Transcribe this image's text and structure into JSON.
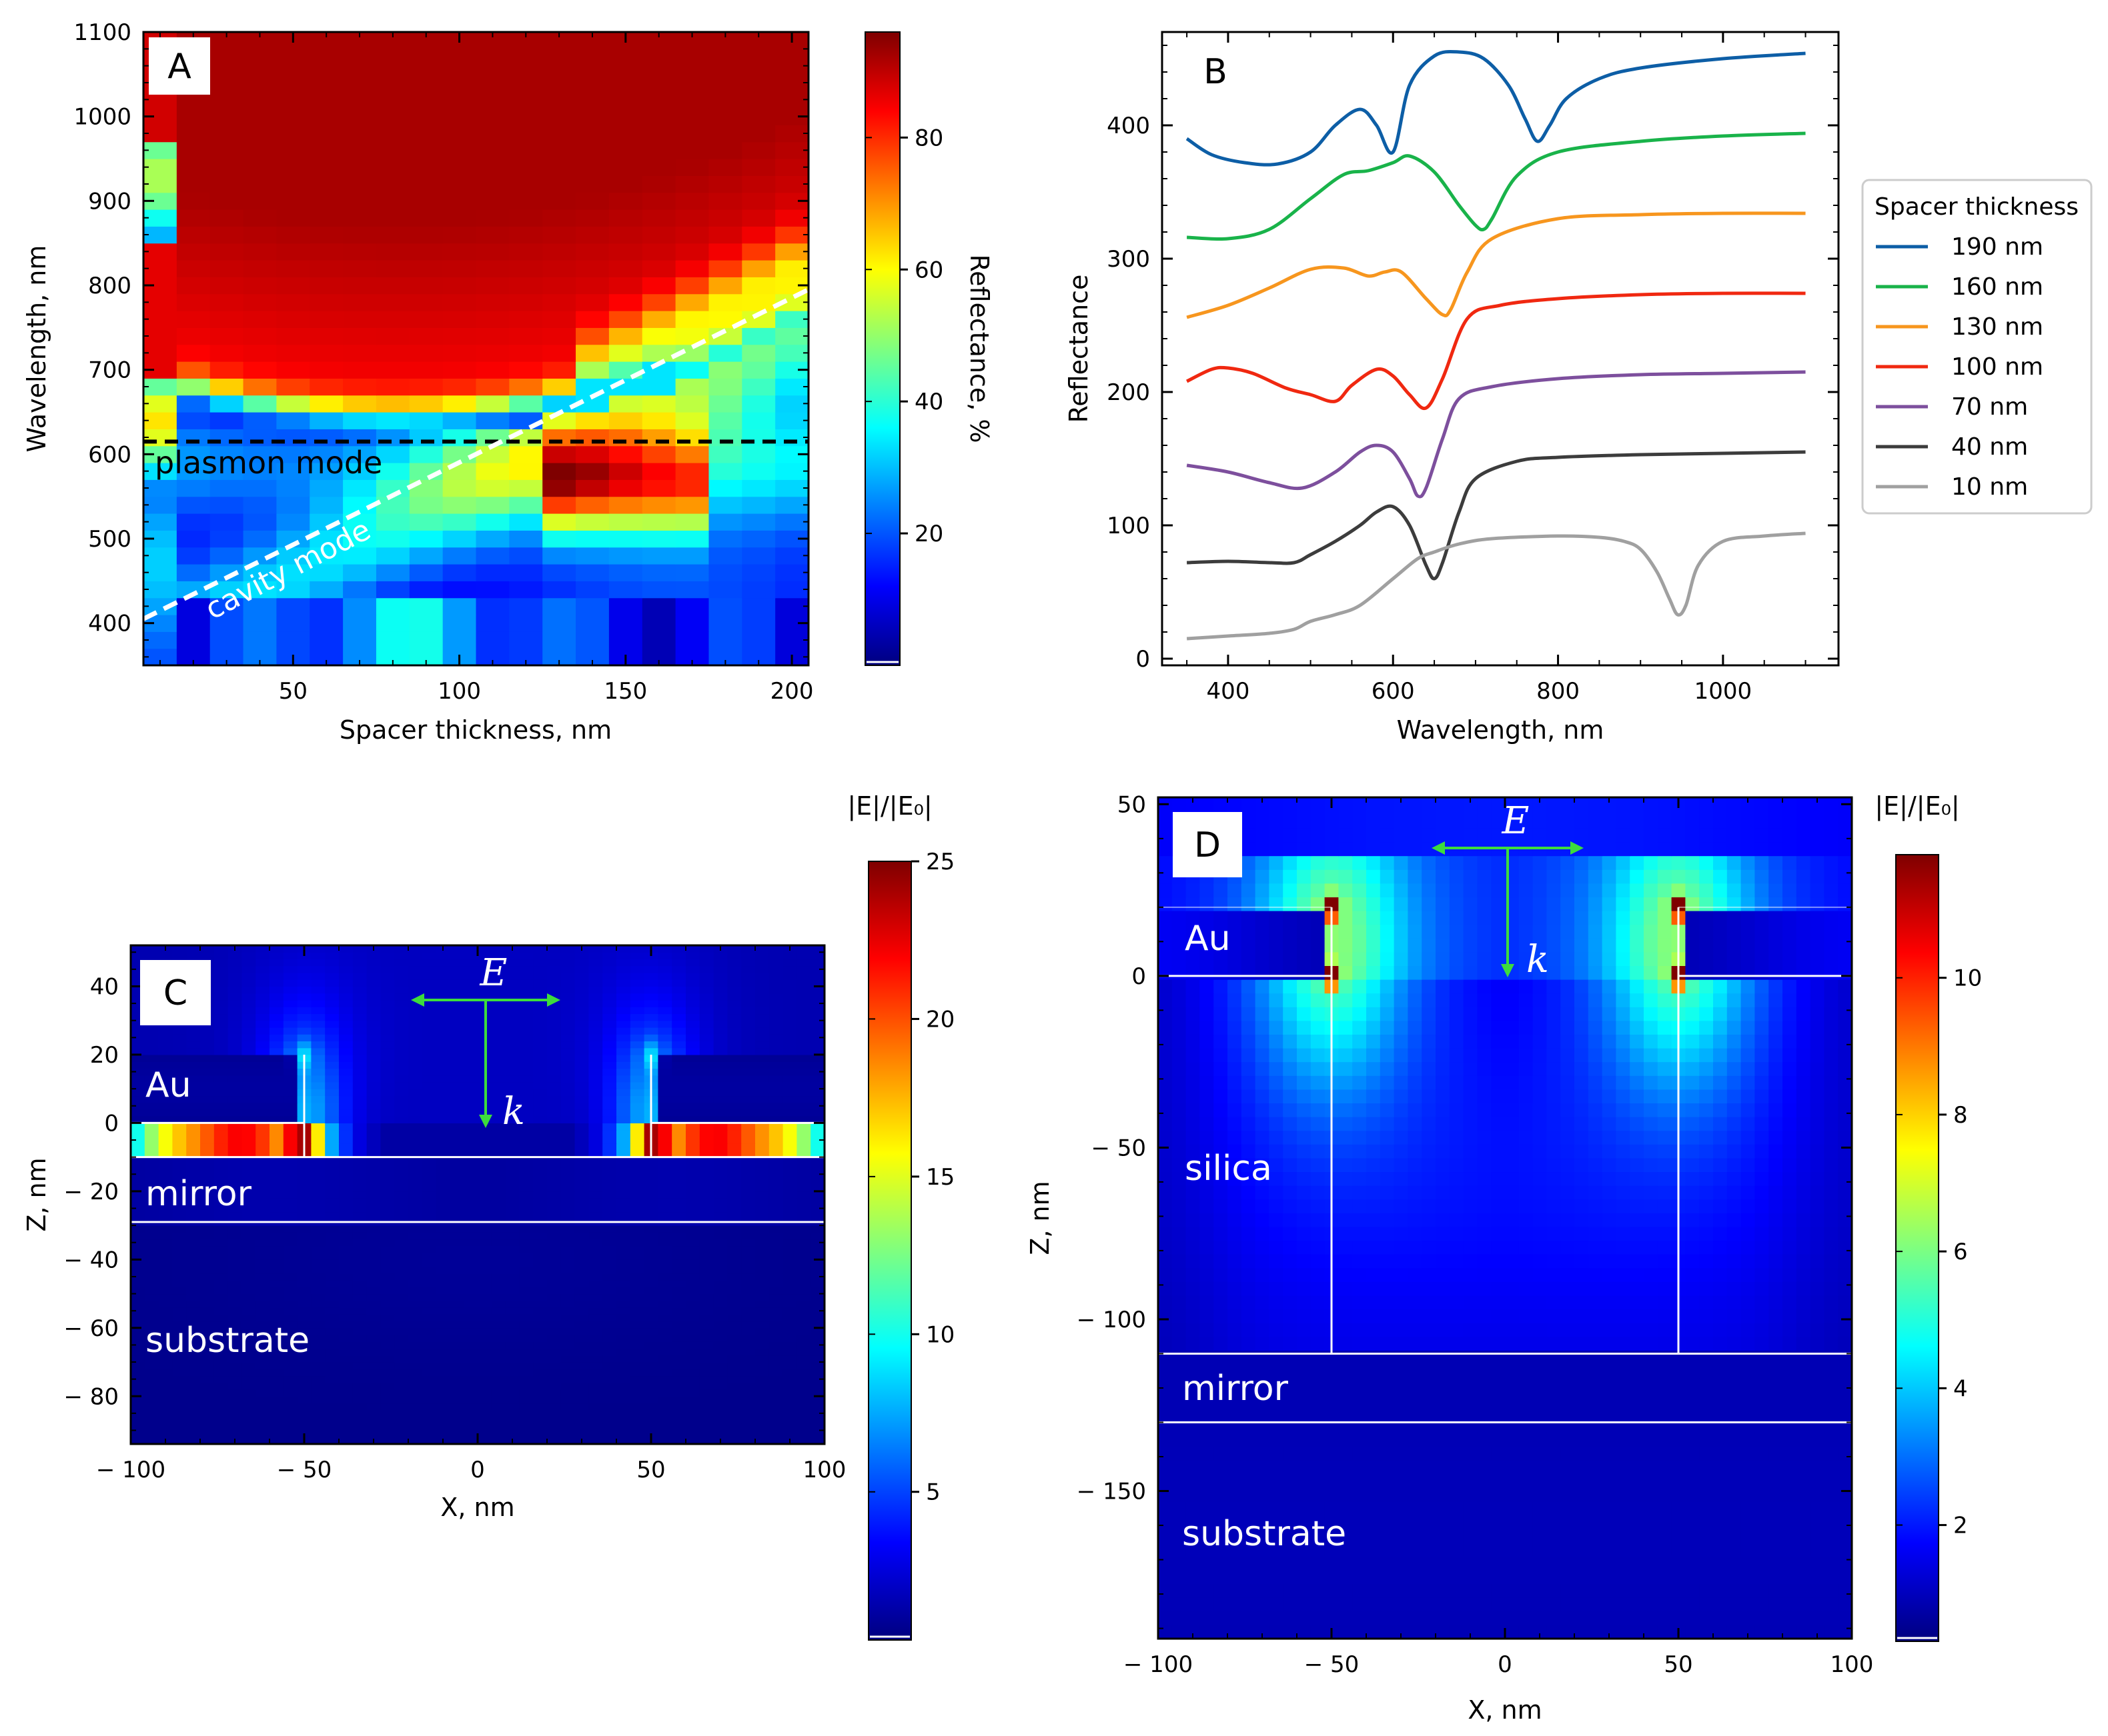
{
  "colors": {
    "jet_stops": [
      "#00007f",
      "#0000ff",
      "#007fff",
      "#00ffff",
      "#7fff7f",
      "#ffff00",
      "#ff7f00",
      "#ff0000",
      "#7f0000"
    ],
    "series": [
      "#0d5ea6",
      "#19b34a",
      "#f7961e",
      "#f02810",
      "#7d4f9d",
      "#3c3c3c",
      "#a0a0a0"
    ],
    "arrow": "#3ddc3d"
  },
  "chart_data": [
    {
      "panel": "A",
      "type": "heatmap",
      "panel_label": "A",
      "xlabel": "Spacer thickness, nm",
      "ylabel": "Wavelength, nm",
      "xlim": [
        5,
        205
      ],
      "ylim": [
        350,
        1100
      ],
      "xticks": [
        "50",
        "100",
        "150",
        "200"
      ],
      "yticks": [
        "400",
        "500",
        "600",
        "700",
        "800",
        "900",
        "1000",
        "1100"
      ],
      "colorbar": {
        "label": "Reflectance, %",
        "range": [
          0,
          96
        ],
        "ticks": [
          "20",
          "40",
          "60",
          "80"
        ]
      },
      "annotations": {
        "plasmon": "plasmon mode",
        "cavity": "cavity mode"
      },
      "plasmon_mode_wavelength": 615,
      "cavity_mode_line": {
        "x": [
          5,
          205
        ],
        "y": [
          405,
          795
        ]
      }
    },
    {
      "panel": "B",
      "type": "line",
      "panel_label": "B",
      "xlabel": "Wavelength, nm",
      "ylabel": "Reflectance",
      "xlim": [
        320,
        1140
      ],
      "ylim": [
        -5,
        470
      ],
      "xticks": [
        "400",
        "600",
        "800",
        "1000"
      ],
      "yticks": [
        "0",
        "100",
        "200",
        "300",
        "400"
      ],
      "legend": {
        "title": "Spacer thickness",
        "position": "right-outside"
      },
      "series": [
        {
          "name": "190 nm",
          "x": [
            350,
            380,
            420,
            460,
            500,
            530,
            560,
            580,
            600,
            620,
            650,
            680,
            710,
            740,
            760,
            775,
            790,
            810,
            850,
            900,
            1000,
            1100
          ],
          "values": [
            390,
            378,
            372,
            371,
            380,
            400,
            412,
            400,
            380,
            430,
            452,
            455,
            450,
            430,
            405,
            388,
            400,
            420,
            435,
            443,
            450,
            454
          ]
        },
        {
          "name": "160 nm",
          "x": [
            350,
            400,
            450,
            500,
            540,
            570,
            600,
            620,
            650,
            680,
            700,
            710,
            720,
            750,
            800,
            900,
            1000,
            1100
          ],
          "values": [
            316,
            315,
            322,
            345,
            363,
            366,
            372,
            377,
            365,
            340,
            325,
            322,
            330,
            362,
            380,
            388,
            392,
            394
          ]
        },
        {
          "name": "130 nm",
          "x": [
            350,
            400,
            450,
            500,
            540,
            570,
            590,
            610,
            640,
            660,
            670,
            690,
            720,
            800,
            900,
            1000,
            1100
          ],
          "values": [
            256,
            265,
            278,
            292,
            293,
            287,
            290,
            290,
            270,
            258,
            262,
            290,
            315,
            330,
            333,
            334,
            334
          ]
        },
        {
          "name": "100 nm",
          "x": [
            350,
            380,
            400,
            430,
            470,
            500,
            530,
            550,
            580,
            600,
            620,
            640,
            660,
            690,
            730,
            800,
            900,
            1000,
            1100
          ],
          "values": [
            208,
            217,
            218,
            214,
            203,
            198,
            193,
            205,
            217,
            212,
            198,
            188,
            210,
            255,
            265,
            270,
            273,
            274,
            274
          ]
        },
        {
          "name": "70 nm",
          "x": [
            350,
            400,
            450,
            490,
            530,
            560,
            580,
            600,
            620,
            630,
            640,
            660,
            680,
            720,
            800,
            900,
            1000,
            1100
          ],
          "values": [
            145,
            140,
            132,
            128,
            140,
            155,
            160,
            155,
            135,
            122,
            128,
            165,
            195,
            204,
            210,
            213,
            214,
            215
          ]
        },
        {
          "name": "40 nm",
          "x": [
            350,
            400,
            450,
            480,
            500,
            530,
            560,
            580,
            600,
            620,
            640,
            650,
            660,
            680,
            700,
            750,
            800,
            900,
            1000,
            1100
          ],
          "values": [
            72,
            73,
            72,
            72,
            78,
            88,
            100,
            110,
            114,
            100,
            70,
            60,
            72,
            110,
            135,
            148,
            151,
            153,
            154,
            155
          ]
        },
        {
          "name": "10 nm",
          "x": [
            350,
            400,
            450,
            480,
            500,
            530,
            560,
            600,
            630,
            650,
            680,
            720,
            800,
            850,
            880,
            900,
            920,
            935,
            945,
            955,
            970,
            1000,
            1050,
            1100
          ],
          "values": [
            15,
            17,
            19,
            22,
            28,
            33,
            40,
            60,
            75,
            80,
            86,
            90,
            92,
            91,
            88,
            82,
            65,
            45,
            33,
            40,
            70,
            88,
            92,
            94
          ]
        }
      ]
    },
    {
      "panel": "C",
      "type": "heatmap",
      "panel_label": "C",
      "xlabel": "X, nm",
      "ylabel": "Z, nm",
      "xlim": [
        -100,
        100
      ],
      "ylim": [
        -94,
        52
      ],
      "xticks": [
        "− 100",
        "− 50",
        "0",
        "50",
        "100"
      ],
      "yticks": [
        "40",
        "20",
        "0",
        "− 20",
        "− 40",
        "− 60",
        "− 80"
      ],
      "colorbar": {
        "title": "|E|/|E₀|",
        "range": [
          0.3,
          25
        ],
        "ticks": [
          "5",
          "10",
          "15",
          "20",
          "25"
        ]
      },
      "regions": [
        "Au",
        "mirror",
        "substrate"
      ],
      "vectors": {
        "e": "E",
        "k": "k"
      },
      "interfaces_z": [
        0,
        -10,
        -29
      ]
    },
    {
      "panel": "D",
      "type": "heatmap",
      "panel_label": "D",
      "xlabel": "X, nm",
      "ylabel": "Z, nm",
      "xlim": [
        -100,
        100
      ],
      "ylim": [
        -193,
        52
      ],
      "xticks": [
        "− 100",
        "− 50",
        "0",
        "50",
        "100"
      ],
      "yticks": [
        "50",
        "0",
        "− 50",
        "− 100",
        "− 150"
      ],
      "colorbar": {
        "title": "|E|/|E₀|",
        "range": [
          0.3,
          11.8
        ],
        "ticks": [
          "2",
          "4",
          "6",
          "8",
          "10"
        ]
      },
      "regions": [
        "Au",
        "silica",
        "mirror",
        "substrate"
      ],
      "vectors": {
        "e": "E",
        "k": "k"
      },
      "interfaces_z": [
        0,
        -110,
        -130
      ]
    }
  ]
}
